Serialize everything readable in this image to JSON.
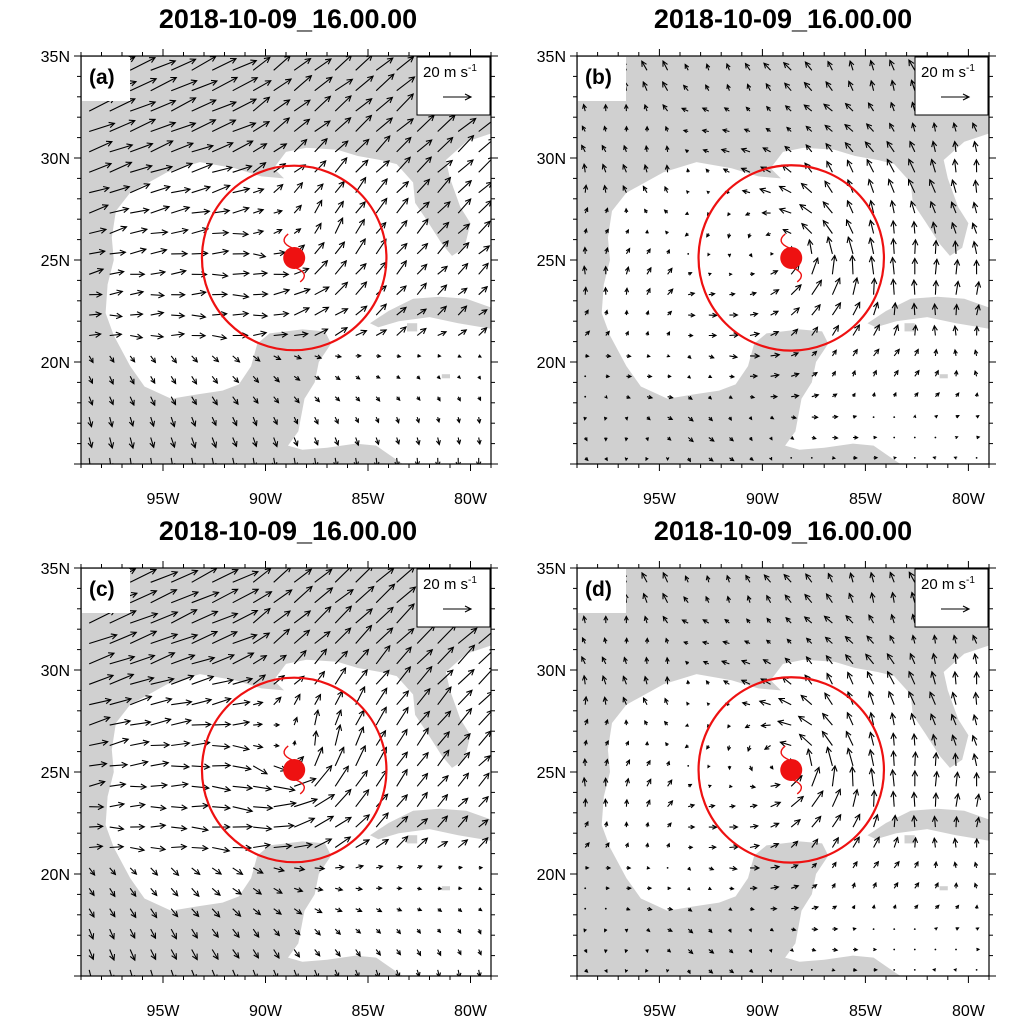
{
  "figure": {
    "accent_color": "#ee1111",
    "land_color": "#d0d0d0"
  },
  "map": {
    "lon_range": [
      -99,
      -79
    ],
    "lat_range": [
      15,
      35
    ],
    "lat_ticks": [
      {
        "value": 35,
        "label": "35N"
      },
      {
        "value": 30,
        "label": "30N"
      },
      {
        "value": 25,
        "label": "25N"
      },
      {
        "value": 20,
        "label": "20N"
      }
    ],
    "lon_ticks": [
      {
        "value": -95,
        "label": "95W"
      },
      {
        "value": -90,
        "label": "90W"
      },
      {
        "value": -85,
        "label": "85W"
      },
      {
        "value": -80,
        "label": "80W"
      }
    ],
    "storm_center": {
      "lon": -88.6,
      "lat": 25.1
    },
    "ring_radius_deg": 4.5
  },
  "panels": [
    {
      "id": "a",
      "title": "2018-10-09_16.00.00",
      "label": "(a)",
      "ref_vector": {
        "text": "20 m s",
        "superscript": "-1"
      }
    },
    {
      "id": "b",
      "title": "2018-10-09_16.00.00",
      "label": "(b)",
      "ref_vector": {
        "text": "20 m s",
        "superscript": "-1"
      }
    },
    {
      "id": "c",
      "title": "2018-10-09_16.00.00",
      "label": "(c)",
      "ref_vector": {
        "text": "20 m s",
        "superscript": "-1"
      }
    },
    {
      "id": "d",
      "title": "2018-10-09_16.00.00",
      "label": "(d)",
      "ref_vector": {
        "text": "20 m s",
        "superscript": "-1"
      }
    }
  ]
}
